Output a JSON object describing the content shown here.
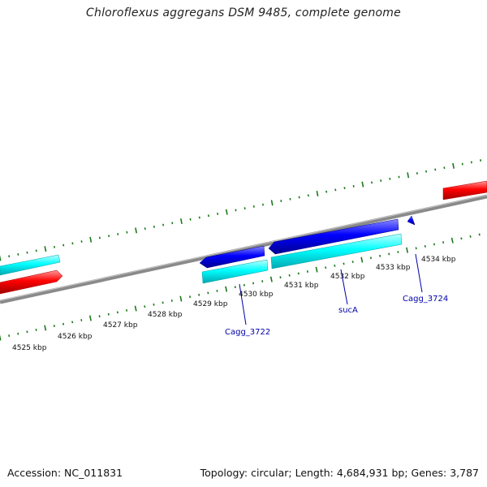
{
  "title": "Chloroflexus aggregans DSM 9485, complete genome",
  "footer": {
    "accession": "Accession: NC_011831",
    "summary": "Topology: circular; Length: 4,684,931 bp; Genes: 3,787"
  },
  "scale": {
    "labels": [
      "4525 kbp",
      "4526 kbp",
      "4527 kbp",
      "4528 kbp",
      "4529 kbp",
      "4530 kbp",
      "4531 kbp",
      "4532 kbp",
      "4533 kbp",
      "4534 kbp"
    ]
  },
  "genes": {
    "labels": [
      "Cagg_3722",
      "sucA",
      "Cagg_3724"
    ]
  },
  "colors": {
    "backbone": "#808080",
    "cds_forward": "#00ffff",
    "cds_reverse": "#ff0000",
    "gene_forward": "#0000ff",
    "ticks": "#1a7a1a"
  }
}
